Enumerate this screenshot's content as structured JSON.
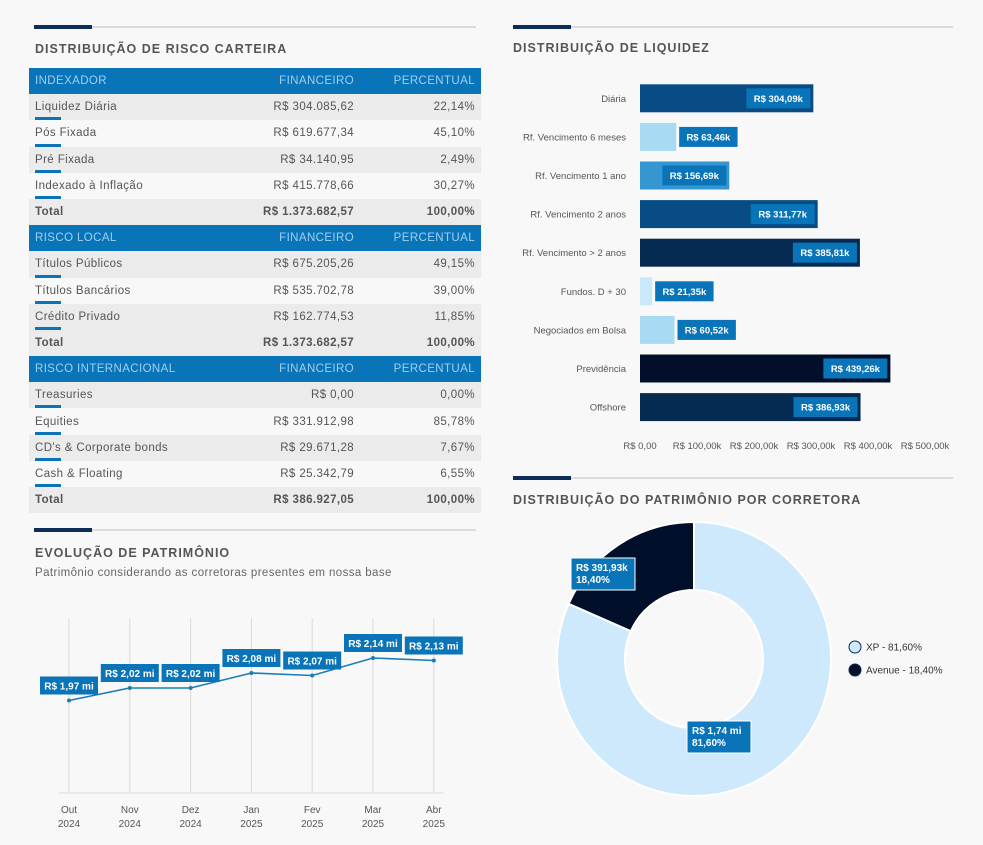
{
  "risk": {
    "title": "DISTRIBUIÇÃO DE RISCO CARTEIRA",
    "groups": [
      {
        "header": [
          "INDEXADOR",
          "FINANCEIRO",
          "PERCENTUAL"
        ],
        "rows": [
          [
            "Liquidez Diária",
            "R$ 304.085,62",
            "22,14%"
          ],
          [
            "Pós Fixada",
            "R$ 619.677,34",
            "45,10%"
          ],
          [
            "Pré Fixada",
            "R$ 34.140,95",
            "2,49%"
          ],
          [
            "Indexado à Inflação",
            "R$ 415.778,66",
            "30,27%"
          ]
        ],
        "total": [
          "Total",
          "R$ 1.373.682,57",
          "100,00%"
        ]
      },
      {
        "header": [
          "RISCO LOCAL",
          "FINANCEIRO",
          "PERCENTUAL"
        ],
        "rows": [
          [
            "Títulos Públicos",
            "R$ 675.205,26",
            "49,15%"
          ],
          [
            "Títulos Bancários",
            "R$ 535.702,78",
            "39,00%"
          ],
          [
            "Crédito Privado",
            "R$ 162.774,53",
            "11,85%"
          ]
        ],
        "total": [
          "Total",
          "R$ 1.373.682,57",
          "100,00%"
        ]
      },
      {
        "header": [
          "RISCO INTERNACIONAL",
          "FINANCEIRO",
          "PERCENTUAL"
        ],
        "rows": [
          [
            "Treasuries",
            "R$ 0,00",
            "0,00%"
          ],
          [
            "Equities",
            "R$ 331.912,98",
            "85,78%"
          ],
          [
            "CD's & Corporate bonds",
            "R$ 29.671,28",
            "7,67%"
          ],
          [
            "Cash & Floating",
            "R$ 25.342,79",
            "6,55%"
          ]
        ],
        "total": [
          "Total",
          "R$ 386.927,05",
          "100,00%"
        ]
      }
    ]
  },
  "chart_data": [
    {
      "type": "bar",
      "orientation": "horizontal",
      "title": "DISTRIBUIÇÃO DE LIQUIDEZ",
      "categories": [
        "Diária",
        "Rf. Vencimento 6 meses",
        "Rf. Vencimento 1 ano",
        "Rf. Vencimento 2 anos",
        "Rf. Vencimento > 2 anos",
        "Fundos. D + 30",
        "Negociados em Bolsa",
        "Previdência",
        "Offshore"
      ],
      "values": [
        304.09,
        63.46,
        156.69,
        311.77,
        385.81,
        21.35,
        60.52,
        439.26,
        386.93
      ],
      "labels": [
        "R$ 304,09k",
        "R$ 63,46k",
        "R$ 156,69k",
        "R$ 311,77k",
        "R$ 385,81k",
        "R$ 21,35k",
        "R$ 60,52k",
        "R$ 439,26k",
        "R$ 386,93k"
      ],
      "colors": [
        "#074c84",
        "#a7daf3",
        "#3596d2",
        "#074c84",
        "#062b52",
        "#c9e9f9",
        "#a7daf3",
        "#020f2b",
        "#062b52"
      ],
      "xlim": [
        0,
        500
      ],
      "xticks": [
        0,
        100,
        200,
        300,
        400,
        500
      ],
      "xtick_labels": [
        "R$ 0,00",
        "R$ 100,00k",
        "R$ 200,00k",
        "R$ 300,00k",
        "R$ 400,00k",
        "R$ 500,00k"
      ]
    },
    {
      "type": "line",
      "title": "EVOLUÇÃO DE PATRIMÔNIO",
      "subtitle": "Patrimônio considerando as corretoras presentes em nossa base",
      "categories": [
        [
          "Out",
          "2024"
        ],
        [
          "Nov",
          "2024"
        ],
        [
          "Dez",
          "2024"
        ],
        [
          "Jan",
          "2025"
        ],
        [
          "Fev",
          "2025"
        ],
        [
          "Mar",
          "2025"
        ],
        [
          "Abr",
          "2025"
        ]
      ],
      "values": [
        1.97,
        2.02,
        2.02,
        2.08,
        2.07,
        2.14,
        2.13
      ],
      "labels": [
        "R$ 1,97 mi",
        "R$ 2,02 mi",
        "R$ 2,02 mi",
        "R$ 2,08 mi",
        "R$ 2,07 mi",
        "R$ 2,14 mi",
        "R$ 2,13 mi"
      ],
      "ylim": [
        1.6,
        2.3
      ],
      "color": "#1a7db8"
    },
    {
      "type": "pie",
      "title": "DISTRIBUIÇÃO DO PATRIMÔNIO POR CORRETORA",
      "slices": [
        {
          "name": "XP - 81,60%",
          "value": 81.6,
          "label": [
            "R$ 1,74 mi",
            "81,60%"
          ],
          "color": "#cde9fb"
        },
        {
          "name": "Avenue - 18,40%",
          "value": 18.4,
          "label": [
            "R$ 391,93k",
            "18,40%"
          ],
          "color": "#020f2b"
        }
      ],
      "legend": "right"
    }
  ]
}
